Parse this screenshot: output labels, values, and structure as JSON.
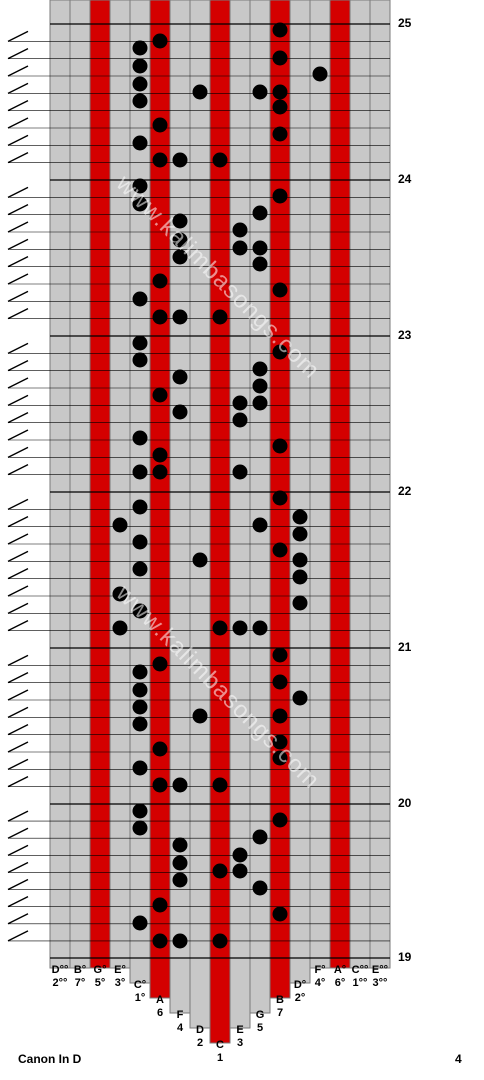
{
  "title": "Canon In D",
  "page_number": "4",
  "watermark": "www.kalimbasongs.com",
  "measures": [
    "25",
    "24",
    "23",
    "22",
    "21",
    "20",
    "19"
  ],
  "colors": {
    "tine_gray": "#c8c8c8",
    "tine_red": "#d40000",
    "line": "#000000"
  },
  "keys": [
    {
      "note": "D°°",
      "num": "2°°",
      "red": false
    },
    {
      "note": "B°",
      "num": "7°",
      "red": false
    },
    {
      "note": "G°",
      "num": "5°",
      "red": true
    },
    {
      "note": "E°",
      "num": "3°",
      "red": false
    },
    {
      "note": "C°",
      "num": "1°",
      "red": false
    },
    {
      "note": "A",
      "num": "6",
      "red": true
    },
    {
      "note": "F",
      "num": "4",
      "red": false
    },
    {
      "note": "D",
      "num": "2",
      "red": false
    },
    {
      "note": "C",
      "num": "1",
      "red": true
    },
    {
      "note": "E",
      "num": "3",
      "red": false
    },
    {
      "note": "G",
      "num": "5",
      "red": false
    },
    {
      "note": "B",
      "num": "7",
      "red": true
    },
    {
      "note": "D°",
      "num": "2°",
      "red": false
    },
    {
      "note": "F°",
      "num": "4°",
      "red": false
    },
    {
      "note": "A°",
      "num": "6°",
      "red": true
    },
    {
      "note": "C°°",
      "num": "1°°",
      "red": false
    },
    {
      "note": "E°°",
      "num": "3°°",
      "red": false
    }
  ]
}
